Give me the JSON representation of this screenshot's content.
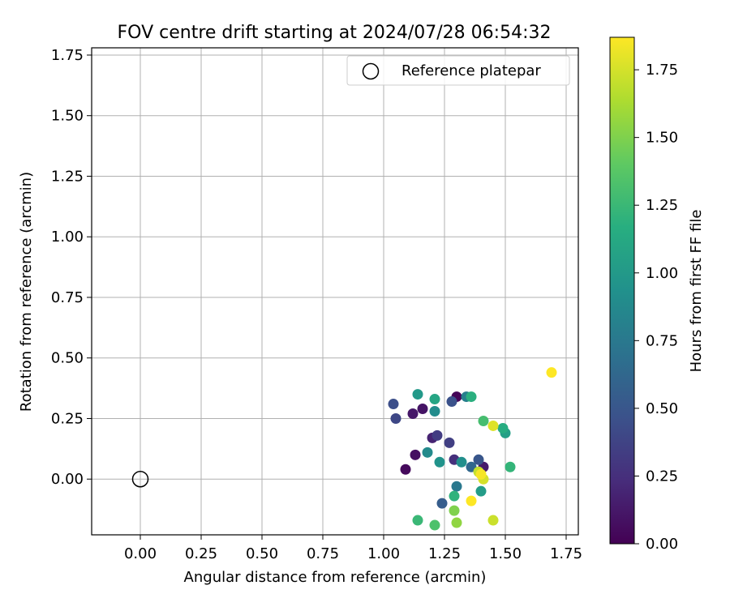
{
  "chart_data": {
    "type": "scatter",
    "title": "FOV centre drift starting at 2024/07/28 06:54:32",
    "xlabel": "Angular distance from reference (arcmin)",
    "ylabel": "Rotation from reference (arcmin)",
    "xlim": [
      -0.2,
      1.8
    ],
    "ylim": [
      -0.23,
      1.78
    ],
    "x_ticks": [
      "0.00",
      "0.25",
      "0.50",
      "0.75",
      "1.00",
      "1.25",
      "1.50",
      "1.75"
    ],
    "y_ticks": [
      "0.00",
      "0.25",
      "0.50",
      "0.75",
      "1.00",
      "1.25",
      "1.50",
      "1.75"
    ],
    "grid": true,
    "legend": {
      "placement": "top-right",
      "entries": [
        {
          "label": "Reference platepar",
          "marker": "open-circle",
          "color": "#000000"
        }
      ]
    },
    "colorbar": {
      "label": "Hours from first FF file",
      "range": [
        0,
        1.87
      ],
      "ticks": [
        "0.00",
        "0.25",
        "0.50",
        "0.75",
        "1.00",
        "1.25",
        "1.50",
        "1.75"
      ],
      "colormap": "viridis"
    },
    "reference_point": {
      "x": 0.0,
      "y": 0.0
    },
    "points": [
      {
        "x": 1.3,
        "y": 0.34,
        "t": 0.02
      },
      {
        "x": 1.09,
        "y": 0.04,
        "t": 0.05
      },
      {
        "x": 1.13,
        "y": 0.1,
        "t": 0.08
      },
      {
        "x": 1.16,
        "y": 0.29,
        "t": 0.1
      },
      {
        "x": 1.12,
        "y": 0.27,
        "t": 0.12
      },
      {
        "x": 1.41,
        "y": 0.05,
        "t": 0.14
      },
      {
        "x": 1.2,
        "y": 0.17,
        "t": 0.18
      },
      {
        "x": 1.29,
        "y": 0.08,
        "t": 0.25
      },
      {
        "x": 1.22,
        "y": 0.18,
        "t": 0.33
      },
      {
        "x": 1.27,
        "y": 0.15,
        "t": 0.35
      },
      {
        "x": 1.05,
        "y": 0.25,
        "t": 0.4
      },
      {
        "x": 1.04,
        "y": 0.31,
        "t": 0.45
      },
      {
        "x": 1.28,
        "y": 0.32,
        "t": 0.47
      },
      {
        "x": 1.39,
        "y": 0.08,
        "t": 0.5
      },
      {
        "x": 1.24,
        "y": -0.1,
        "t": 0.55
      },
      {
        "x": 1.36,
        "y": 0.05,
        "t": 0.62
      },
      {
        "x": 1.3,
        "y": -0.03,
        "t": 0.75
      },
      {
        "x": 1.34,
        "y": 0.34,
        "t": 0.8
      },
      {
        "x": 1.18,
        "y": 0.11,
        "t": 0.88
      },
      {
        "x": 1.21,
        "y": 0.28,
        "t": 0.9
      },
      {
        "x": 1.32,
        "y": 0.07,
        "t": 0.92
      },
      {
        "x": 1.23,
        "y": 0.07,
        "t": 0.95
      },
      {
        "x": 1.14,
        "y": 0.35,
        "t": 1.0
      },
      {
        "x": 1.4,
        "y": -0.05,
        "t": 1.02
      },
      {
        "x": 1.5,
        "y": 0.19,
        "t": 1.05
      },
      {
        "x": 1.21,
        "y": 0.33,
        "t": 1.1
      },
      {
        "x": 1.49,
        "y": 0.21,
        "t": 1.15
      },
      {
        "x": 1.36,
        "y": 0.34,
        "t": 1.18
      },
      {
        "x": 1.29,
        "y": -0.07,
        "t": 1.2
      },
      {
        "x": 1.52,
        "y": 0.05,
        "t": 1.22
      },
      {
        "x": 1.14,
        "y": -0.17,
        "t": 1.25
      },
      {
        "x": 1.41,
        "y": 0.24,
        "t": 1.3
      },
      {
        "x": 1.21,
        "y": -0.19,
        "t": 1.33
      },
      {
        "x": 1.29,
        "y": -0.13,
        "t": 1.5
      },
      {
        "x": 1.3,
        "y": -0.18,
        "t": 1.55
      },
      {
        "x": 1.39,
        "y": 0.03,
        "t": 1.7
      },
      {
        "x": 1.45,
        "y": -0.17,
        "t": 1.72
      },
      {
        "x": 1.41,
        "y": 0.0,
        "t": 1.75
      },
      {
        "x": 1.45,
        "y": 0.22,
        "t": 1.78
      },
      {
        "x": 1.4,
        "y": 0.02,
        "t": 1.85
      },
      {
        "x": 1.36,
        "y": -0.09,
        "t": 1.87
      },
      {
        "x": 1.69,
        "y": 0.44,
        "t": 1.87
      }
    ]
  }
}
